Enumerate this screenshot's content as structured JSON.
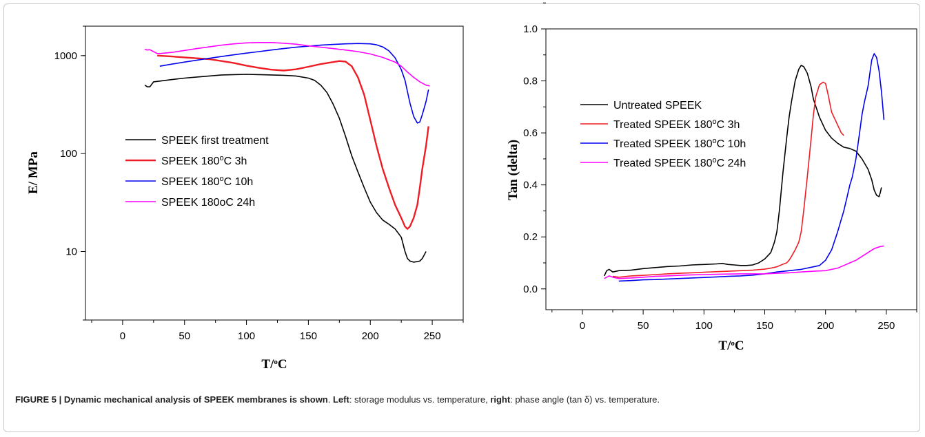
{
  "caption": {
    "figure_label": "FIGURE 5 | Dynamic mechanical analysis of SPEEK membranes is shown",
    "left_label": "Left",
    "left_text": ": storage modulus vs. temperature, ",
    "right_label": "right",
    "right_text": ": phase angle (tan δ) vs. temperature."
  },
  "chart_data": [
    {
      "type": "line",
      "title": "",
      "xlabel": "T/°C",
      "ylabel": "E/ MPa",
      "yscale": "log",
      "xlim": [
        -30,
        275
      ],
      "ylim": [
        2,
        2000
      ],
      "xticks": [
        0,
        50,
        100,
        150,
        200,
        250
      ],
      "yticks": [
        10,
        100,
        1000
      ],
      "legend_position": "center-left",
      "series": [
        {
          "name": "SPEEK first treatment",
          "color": "#000000",
          "x": [
            18,
            20,
            22,
            25,
            30,
            40,
            50,
            60,
            70,
            80,
            90,
            100,
            110,
            120,
            130,
            140,
            150,
            155,
            160,
            165,
            170,
            175,
            180,
            185,
            190,
            195,
            200,
            205,
            210,
            215,
            220,
            225,
            228,
            230,
            232,
            235,
            238,
            240,
            242,
            245
          ],
          "y": [
            500,
            480,
            480,
            540,
            550,
            570,
            590,
            605,
            620,
            635,
            640,
            645,
            640,
            635,
            630,
            620,
            590,
            560,
            500,
            420,
            320,
            230,
            150,
            95,
            65,
            45,
            32,
            25,
            21,
            19,
            17,
            14,
            10,
            8.5,
            8,
            7.8,
            7.9,
            8,
            8.5,
            10
          ]
        },
        {
          "name": "SPEEK 180°C 3h",
          "color": "#ee1c24",
          "x": [
            28,
            40,
            50,
            60,
            70,
            80,
            90,
            100,
            110,
            120,
            130,
            140,
            150,
            160,
            170,
            175,
            180,
            185,
            190,
            195,
            200,
            205,
            210,
            215,
            220,
            225,
            228,
            230,
            232,
            235,
            238,
            240,
            242,
            245,
            247
          ],
          "y": [
            1000,
            980,
            960,
            940,
            920,
            880,
            840,
            790,
            750,
            720,
            705,
            725,
            770,
            820,
            860,
            880,
            870,
            780,
            600,
            400,
            220,
            120,
            70,
            45,
            30,
            22,
            18,
            17,
            18,
            22,
            30,
            45,
            70,
            120,
            190
          ]
        },
        {
          "name": "SPEEK 180°C 10h",
          "color": "#0000ee",
          "x": [
            30,
            40,
            50,
            60,
            70,
            80,
            90,
            100,
            110,
            120,
            130,
            140,
            150,
            160,
            170,
            180,
            190,
            200,
            205,
            210,
            215,
            220,
            225,
            228,
            230,
            232,
            235,
            238,
            240,
            242,
            245,
            247
          ],
          "y": [
            780,
            820,
            860,
            900,
            940,
            980,
            1020,
            1060,
            1100,
            1140,
            1180,
            1220,
            1250,
            1280,
            1300,
            1320,
            1330,
            1320,
            1290,
            1230,
            1120,
            950,
            720,
            560,
            430,
            330,
            240,
            205,
            210,
            250,
            340,
            450
          ]
        },
        {
          "name": "SPEEK 180oC 24h",
          "color": "#ff00ff",
          "x": [
            18,
            20,
            22,
            25,
            28,
            30,
            40,
            50,
            60,
            70,
            80,
            90,
            100,
            110,
            120,
            130,
            140,
            150,
            160,
            170,
            180,
            190,
            200,
            210,
            220,
            225,
            230,
            235,
            240,
            245,
            248
          ],
          "y": [
            1160,
            1140,
            1150,
            1100,
            1050,
            1050,
            1080,
            1130,
            1180,
            1230,
            1280,
            1320,
            1350,
            1360,
            1360,
            1340,
            1310,
            1260,
            1220,
            1180,
            1140,
            1100,
            1040,
            960,
            860,
            780,
            680,
            600,
            540,
            500,
            490
          ]
        }
      ]
    },
    {
      "type": "line",
      "title": "",
      "xlabel": "T/°C",
      "ylabel": "Tan (delta)",
      "xlim": [
        -30,
        275
      ],
      "ylim": [
        -0.08,
        1.0
      ],
      "xticks": [
        0,
        50,
        100,
        150,
        200,
        250
      ],
      "yticks": [
        0.0,
        0.2,
        0.4,
        0.6,
        0.8,
        1.0
      ],
      "legend_position": "upper-left",
      "series": [
        {
          "name": "Untreated SPEEK",
          "color": "#000000",
          "x": [
            18,
            20,
            22,
            25,
            30,
            40,
            50,
            60,
            70,
            80,
            90,
            100,
            110,
            115,
            120,
            125,
            130,
            135,
            140,
            145,
            150,
            155,
            158,
            160,
            162,
            165,
            168,
            170,
            172,
            175,
            178,
            180,
            182,
            185,
            188,
            190,
            195,
            200,
            205,
            210,
            215,
            220,
            225,
            230,
            235,
            238,
            240,
            242,
            244,
            245,
            246
          ],
          "y": [
            0.05,
            0.07,
            0.075,
            0.065,
            0.07,
            0.072,
            0.078,
            0.082,
            0.086,
            0.088,
            0.092,
            0.094,
            0.096,
            0.098,
            0.094,
            0.092,
            0.09,
            0.09,
            0.092,
            0.1,
            0.115,
            0.14,
            0.18,
            0.22,
            0.3,
            0.45,
            0.58,
            0.66,
            0.72,
            0.8,
            0.845,
            0.86,
            0.855,
            0.83,
            0.78,
            0.73,
            0.66,
            0.61,
            0.58,
            0.56,
            0.545,
            0.54,
            0.53,
            0.5,
            0.46,
            0.42,
            0.38,
            0.36,
            0.355,
            0.37,
            0.39
          ]
        },
        {
          "name": "Treated SPEEK 180°C 3h",
          "color": "#ee1c24",
          "x": [
            25,
            30,
            40,
            50,
            60,
            70,
            80,
            90,
            100,
            110,
            120,
            130,
            140,
            150,
            155,
            160,
            165,
            168,
            170,
            172,
            175,
            178,
            180,
            182,
            185,
            188,
            190,
            192,
            195,
            198,
            200,
            202,
            205,
            208,
            210,
            213,
            215
          ],
          "y": [
            0.048,
            0.045,
            0.05,
            0.052,
            0.055,
            0.058,
            0.06,
            0.062,
            0.064,
            0.066,
            0.068,
            0.07,
            0.072,
            0.076,
            0.08,
            0.085,
            0.095,
            0.1,
            0.11,
            0.125,
            0.15,
            0.18,
            0.22,
            0.3,
            0.43,
            0.57,
            0.67,
            0.74,
            0.785,
            0.795,
            0.79,
            0.75,
            0.68,
            0.65,
            0.63,
            0.6,
            0.59
          ]
        },
        {
          "name": "Treated SPEEK 180°C 10h",
          "color": "#0000ee",
          "x": [
            30,
            40,
            50,
            60,
            70,
            80,
            90,
            100,
            110,
            120,
            130,
            140,
            150,
            160,
            170,
            180,
            190,
            195,
            200,
            205,
            210,
            215,
            218,
            220,
            222,
            225,
            228,
            230,
            232,
            235,
            238,
            240,
            242,
            244,
            246,
            248
          ],
          "y": [
            0.03,
            0.032,
            0.035,
            0.036,
            0.038,
            0.04,
            0.042,
            0.044,
            0.046,
            0.048,
            0.05,
            0.053,
            0.058,
            0.065,
            0.07,
            0.075,
            0.085,
            0.09,
            0.11,
            0.15,
            0.22,
            0.3,
            0.36,
            0.4,
            0.43,
            0.5,
            0.6,
            0.67,
            0.72,
            0.78,
            0.88,
            0.905,
            0.89,
            0.84,
            0.76,
            0.65
          ]
        },
        {
          "name": "Treated SPEEK 180°C 24h",
          "color": "#ff00ff",
          "x": [
            18,
            20,
            22,
            25,
            30,
            40,
            50,
            60,
            70,
            80,
            90,
            100,
            110,
            120,
            130,
            140,
            150,
            160,
            170,
            180,
            190,
            200,
            205,
            210,
            215,
            220,
            225,
            230,
            235,
            240,
            245,
            248
          ],
          "y": [
            0.04,
            0.045,
            0.05,
            0.045,
            0.04,
            0.042,
            0.045,
            0.048,
            0.05,
            0.052,
            0.054,
            0.055,
            0.056,
            0.057,
            0.058,
            0.058,
            0.058,
            0.06,
            0.062,
            0.065,
            0.068,
            0.07,
            0.075,
            0.08,
            0.09,
            0.1,
            0.11,
            0.125,
            0.14,
            0.155,
            0.163,
            0.165
          ]
        }
      ]
    }
  ]
}
